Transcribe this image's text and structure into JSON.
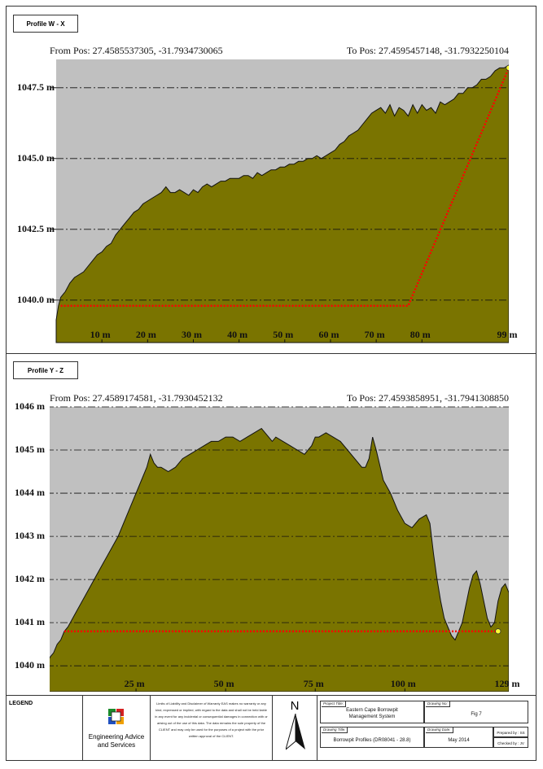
{
  "profiles": [
    {
      "label": "Profile W - X",
      "from_pos": "From Pos: 27.4585537305, -31.7934730065",
      "to_pos": "To Pos: 27.4595457148, -31.7932250104",
      "y_ticks": [
        "1047.5 m",
        "1045.0 m",
        "1042.5 m",
        "1040.0 m"
      ],
      "x_ticks": [
        "10 m",
        "20 m",
        "30 m",
        "40 m",
        "50 m",
        "60 m",
        "70 m",
        "80 m",
        "99 m"
      ]
    },
    {
      "label": "Profile Y - Z",
      "from_pos": "From Pos: 27.4589174581, -31.7930452132",
      "to_pos": "To Pos: 27.4593858951, -31.7941308850",
      "y_ticks": [
        "1046 m",
        "1045 m",
        "1044 m",
        "1043 m",
        "1042 m",
        "1041 m",
        "1040 m"
      ],
      "x_ticks": [
        "25 m",
        "50 m",
        "75 m",
        "100 m",
        "129 m"
      ]
    }
  ],
  "chart_data": [
    {
      "type": "area",
      "title": "",
      "xlabel": "",
      "ylabel": "",
      "xlim": [
        0,
        99
      ],
      "ylim": [
        1038.5,
        1048.5
      ],
      "y_ticks": [
        1047.5,
        1045.0,
        1042.5,
        1040.0
      ],
      "x_ticks": [
        10,
        20,
        30,
        40,
        50,
        60,
        70,
        80,
        99
      ],
      "grid": true,
      "series": [
        {
          "x": [
            0,
            0.5,
            1,
            1.5,
            2,
            3,
            4,
            5,
            6,
            7,
            8,
            9,
            10,
            11,
            12,
            13,
            14,
            15,
            16,
            17,
            18,
            19,
            20,
            21,
            22,
            23,
            24,
            25,
            26,
            27,
            28,
            29,
            30,
            31,
            32,
            33,
            34,
            35,
            36,
            37,
            38,
            39,
            40,
            41,
            42,
            43,
            44,
            45,
            46,
            47,
            48,
            49,
            50,
            51,
            52,
            53,
            54,
            55,
            56,
            57,
            58,
            59,
            60,
            61,
            62,
            63,
            64,
            65,
            66,
            67,
            68,
            69,
            70,
            71,
            72,
            73,
            74,
            75,
            76,
            77,
            78,
            79,
            80,
            81,
            82,
            83,
            84,
            85,
            86,
            87,
            88,
            89,
            90,
            91,
            92,
            93,
            94,
            95,
            96,
            97,
            98,
            99
          ],
          "values": [
            1039.3,
            1039.8,
            1040.1,
            1040.2,
            1040.3,
            1040.6,
            1040.8,
            1040.9,
            1041.0,
            1041.2,
            1041.4,
            1041.6,
            1041.7,
            1041.9,
            1042.0,
            1042.3,
            1042.5,
            1042.7,
            1042.9,
            1043.1,
            1043.2,
            1043.4,
            1043.5,
            1043.6,
            1043.7,
            1043.8,
            1044.0,
            1043.8,
            1043.8,
            1043.9,
            1043.8,
            1043.7,
            1043.9,
            1043.8,
            1044.0,
            1044.1,
            1044.0,
            1044.1,
            1044.2,
            1044.2,
            1044.3,
            1044.3,
            1044.3,
            1044.4,
            1044.4,
            1044.3,
            1044.5,
            1044.4,
            1044.5,
            1044.6,
            1044.6,
            1044.7,
            1044.7,
            1044.8,
            1044.8,
            1044.9,
            1044.9,
            1045.0,
            1045.0,
            1045.1,
            1045.0,
            1045.1,
            1045.2,
            1045.3,
            1045.5,
            1045.6,
            1045.8,
            1045.9,
            1046.0,
            1046.2,
            1046.4,
            1046.6,
            1046.7,
            1046.8,
            1046.6,
            1046.9,
            1046.5,
            1046.8,
            1046.7,
            1046.5,
            1046.9,
            1046.6,
            1046.9,
            1046.7,
            1046.8,
            1046.6,
            1047.0,
            1046.9,
            1047.0,
            1047.1,
            1047.3,
            1047.3,
            1047.5,
            1047.5,
            1047.6,
            1047.8,
            1047.8,
            1047.9,
            1048.1,
            1048.2,
            1048.2,
            1048.3
          ]
        },
        {
          "name": "",
          "style": "dotted",
          "x": [
            1,
            77,
            99
          ],
          "values": [
            1039.8,
            1039.8,
            1048.2
          ]
        }
      ]
    },
    {
      "type": "area",
      "title": "",
      "xlabel": "",
      "ylabel": "",
      "xlim": [
        0,
        129
      ],
      "ylim": [
        1039.4,
        1046.0
      ],
      "y_ticks": [
        1046,
        1045,
        1044,
        1043,
        1042,
        1041,
        1040
      ],
      "x_ticks": [
        25,
        50,
        75,
        100,
        129
      ],
      "grid": true,
      "series": [
        {
          "x": [
            0,
            1,
            2,
            3,
            4,
            5,
            6,
            8,
            10,
            12,
            14,
            16,
            18,
            20,
            22,
            24,
            26,
            28,
            29,
            30,
            31,
            32,
            34,
            36,
            38,
            40,
            42,
            44,
            46,
            48,
            50,
            52,
            54,
            56,
            58,
            60,
            61,
            62,
            63,
            64,
            66,
            68,
            70,
            72,
            73,
            74,
            75,
            76,
            78,
            80,
            82,
            84,
            86,
            88,
            89,
            90,
            91,
            92,
            94,
            96,
            98,
            100,
            102,
            104,
            106,
            107,
            108,
            109,
            110,
            111,
            112,
            113,
            114,
            115,
            116,
            117,
            118,
            119,
            120,
            121,
            122,
            123,
            124,
            125,
            126,
            127,
            128,
            129
          ],
          "values": [
            1040.0,
            1040.2,
            1040.3,
            1040.5,
            1040.6,
            1040.8,
            1040.9,
            1041.2,
            1041.5,
            1041.8,
            1042.1,
            1042.4,
            1042.7,
            1043.0,
            1043.4,
            1043.8,
            1044.2,
            1044.6,
            1044.9,
            1044.7,
            1044.6,
            1044.6,
            1044.5,
            1044.6,
            1044.8,
            1044.9,
            1045.0,
            1045.1,
            1045.2,
            1045.2,
            1045.3,
            1045.3,
            1045.2,
            1045.3,
            1045.4,
            1045.5,
            1045.4,
            1045.3,
            1045.2,
            1045.3,
            1045.2,
            1045.1,
            1045.0,
            1044.9,
            1045.0,
            1045.1,
            1045.3,
            1045.3,
            1045.4,
            1045.3,
            1045.2,
            1045.0,
            1044.8,
            1044.6,
            1044.6,
            1044.8,
            1045.3,
            1045.0,
            1044.3,
            1044.0,
            1043.6,
            1043.3,
            1043.2,
            1043.4,
            1043.5,
            1043.3,
            1042.6,
            1042.0,
            1041.5,
            1041.1,
            1040.9,
            1040.7,
            1040.6,
            1040.8,
            1041.0,
            1041.4,
            1041.8,
            1042.1,
            1042.2,
            1041.9,
            1041.5,
            1041.1,
            1040.9,
            1041.0,
            1041.5,
            1041.8,
            1041.9,
            1041.7
          ]
        },
        {
          "name": "",
          "style": "dotted",
          "x": [
            5,
            126
          ],
          "values": [
            1040.8,
            1040.8
          ]
        }
      ]
    }
  ],
  "footer": {
    "legend_title": "LEGEND",
    "company_line1": "Engineering Advice",
    "company_line2": "and Services",
    "disclaimer": "Limits of Liability and Disclaimer of Warranty EAS makes no warranty or any kind, expressed or implied, with regard to the data and shall not be held liable in any event for any incidental or consequential damages in connection with or arising out of the use of this data. The data remains the sole property of the CLIENT and may only be used for the purposes of a project with the prior written approval of the CLIENT.",
    "north": "N",
    "project_title_label": "Project Title:",
    "project_title": "Eastern Cape Borrowpit Management System",
    "drawing_no_label": "Drawing No:",
    "drawing_no": "Fig 7",
    "drawing_title_label": "Drawing Title:",
    "drawing_title": "Borrowpit Profiles (DR08041 - 28.8)",
    "drawing_date_label": "Drawing Date:",
    "drawing_date": "May 2014",
    "prepared_by": "Prepared by : SS",
    "checked_by": "Checked by : JV"
  },
  "colors": {
    "terrain": "#7a7400",
    "plot_bg": "#c0c0c0",
    "dotted": "#ff0000",
    "endpoint": "#ffff33"
  }
}
